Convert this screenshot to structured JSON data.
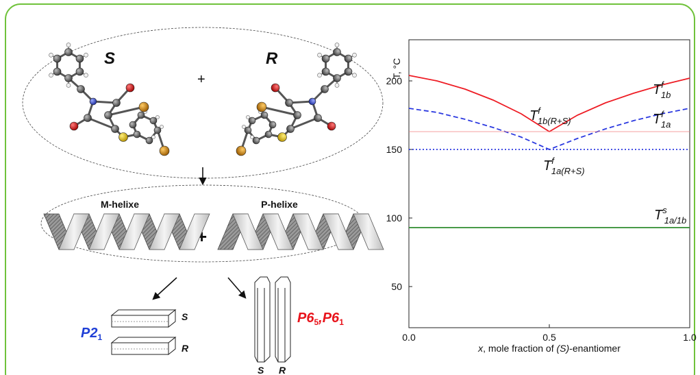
{
  "scheme": {
    "enantiomer_s": "S",
    "plus": "+",
    "enantiomer_r": "R",
    "helix_m": "M-helixe",
    "helix_p": "P-helixe",
    "helix_plus": "+",
    "crystal_s": "S",
    "crystal_r": "R",
    "prism_s": "S",
    "prism_r": "R",
    "sg1_base": "P2",
    "sg1_sub": "1",
    "sg2_a_base": "P6",
    "sg2_a_sub": "5",
    "sg2_sep": ",",
    "sg2_b_base": "P6",
    "sg2_b_sub": "1",
    "sg1_color": "#1f3fd6",
    "sg2_color": "#e8141c"
  },
  "chart_data": {
    "type": "line",
    "xlabel_prefix": "x",
    "xlabel_mid": ", mole fraction of ",
    "xlabel_italic": "(S)",
    "xlabel_suffix": "-enantiomer",
    "ylabel": "T, °C",
    "xlim": [
      0,
      1
    ],
    "ylim": [
      20,
      230
    ],
    "x_ticks": [
      0.0,
      0.5,
      1.0
    ],
    "x_tick_labels": [
      "0.0",
      "0.5",
      "1.0"
    ],
    "y_ticks": [
      50,
      100,
      150,
      200
    ],
    "y_tick_labels": [
      "50",
      "100",
      "150",
      "200"
    ],
    "series": [
      {
        "style": "solid",
        "color": "#ee1c24",
        "x": [
          0,
          0.1,
          0.2,
          0.3,
          0.4,
          0.5,
          0.6,
          0.7,
          0.8,
          0.9,
          1.0
        ],
        "y": [
          204,
          200,
          194,
          186,
          176,
          163,
          175,
          184,
          191,
          197,
          202
        ]
      },
      {
        "style": "dashed",
        "color": "#2b39e0",
        "x": [
          0,
          0.1,
          0.2,
          0.3,
          0.4,
          0.5,
          0.6,
          0.7,
          0.8,
          0.9,
          1.0
        ],
        "y": [
          180,
          177,
          172,
          166,
          159,
          150,
          158,
          165,
          171,
          176,
          180
        ]
      },
      {
        "style": "thin",
        "color": "#f08080",
        "x": [
          0,
          1
        ],
        "y": [
          163,
          163
        ]
      },
      {
        "style": "dotted",
        "color": "#2b39e0",
        "x": [
          0,
          1
        ],
        "y": [
          150,
          150
        ]
      },
      {
        "style": "solid",
        "color": "#2e8b2e",
        "x": [
          0,
          1
        ],
        "y": [
          93,
          93
        ]
      }
    ],
    "annotations": {
      "t1b_base": "T",
      "t1b_sup": "f",
      "t1b_sub": "1b",
      "t1a_base": "T",
      "t1a_sup": "f",
      "t1a_sub": "1a",
      "t1bRS_base": "T",
      "t1bRS_sup": "f",
      "t1bRS_sub": "1b(R+S)",
      "t1aRS_base": "T",
      "t1aRS_sup": "f",
      "t1aRS_sub": "1a(R+S)",
      "ts_base": "T",
      "ts_sup": "s",
      "ts_sub": "1a/1b"
    }
  }
}
